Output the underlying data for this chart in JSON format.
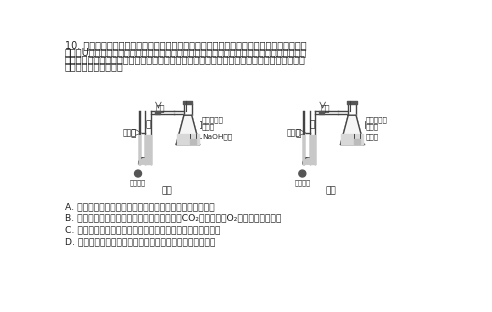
{
  "title_lines": [
    "10. 某研究小组利用检测气压变化的密闭装置来探究微生物的呼吸，实验设计如下。关闭活",
    "栓后，U形管右管液面高度变化反映瓶中气体体积变化。实验开始时将右管液面高度调至参考",
    "点，实验中定时记录右管液面高度相对于参考点的变化（忽略其他原因引起的容积变化）。下",
    "列有关说法不正确的是"
  ],
  "choices": [
    "A. 甲组右管液面变化，表示的是微生物呼吸时氧气的消耗量",
    "B. 乙组右管液面变化，表示的是微生物呼吸时CO₂的释放量和O₂消耗量之间的差值",
    "C. 甲组右管液面升高，乙组不变，说明微生物只进行有氧呼吸",
    "D. 甲组右管液面不变，乙组下降，说明微生物进行乳酸发酵"
  ],
  "group_a": {
    "label": "甲组",
    "bottom_liquid": "NaOH溶液",
    "flask_labels": [
      "葡萄糖溶液",
      "微生物"
    ]
  },
  "group_b": {
    "label": "乙组",
    "bottom_liquid": "蒸馏水",
    "flask_labels": [
      "葡萄糖溶液",
      "微生物"
    ]
  },
  "valve_label": "活栓",
  "ref_label": "参考点",
  "left_label": "左",
  "right_label": "右",
  "adj_label": "调节螺旋",
  "bg_color": "#ffffff",
  "text_color": "#222222",
  "line_color": "#444444",
  "fs_main": 7.0,
  "fs_small": 5.8,
  "fs_label": 6.5
}
